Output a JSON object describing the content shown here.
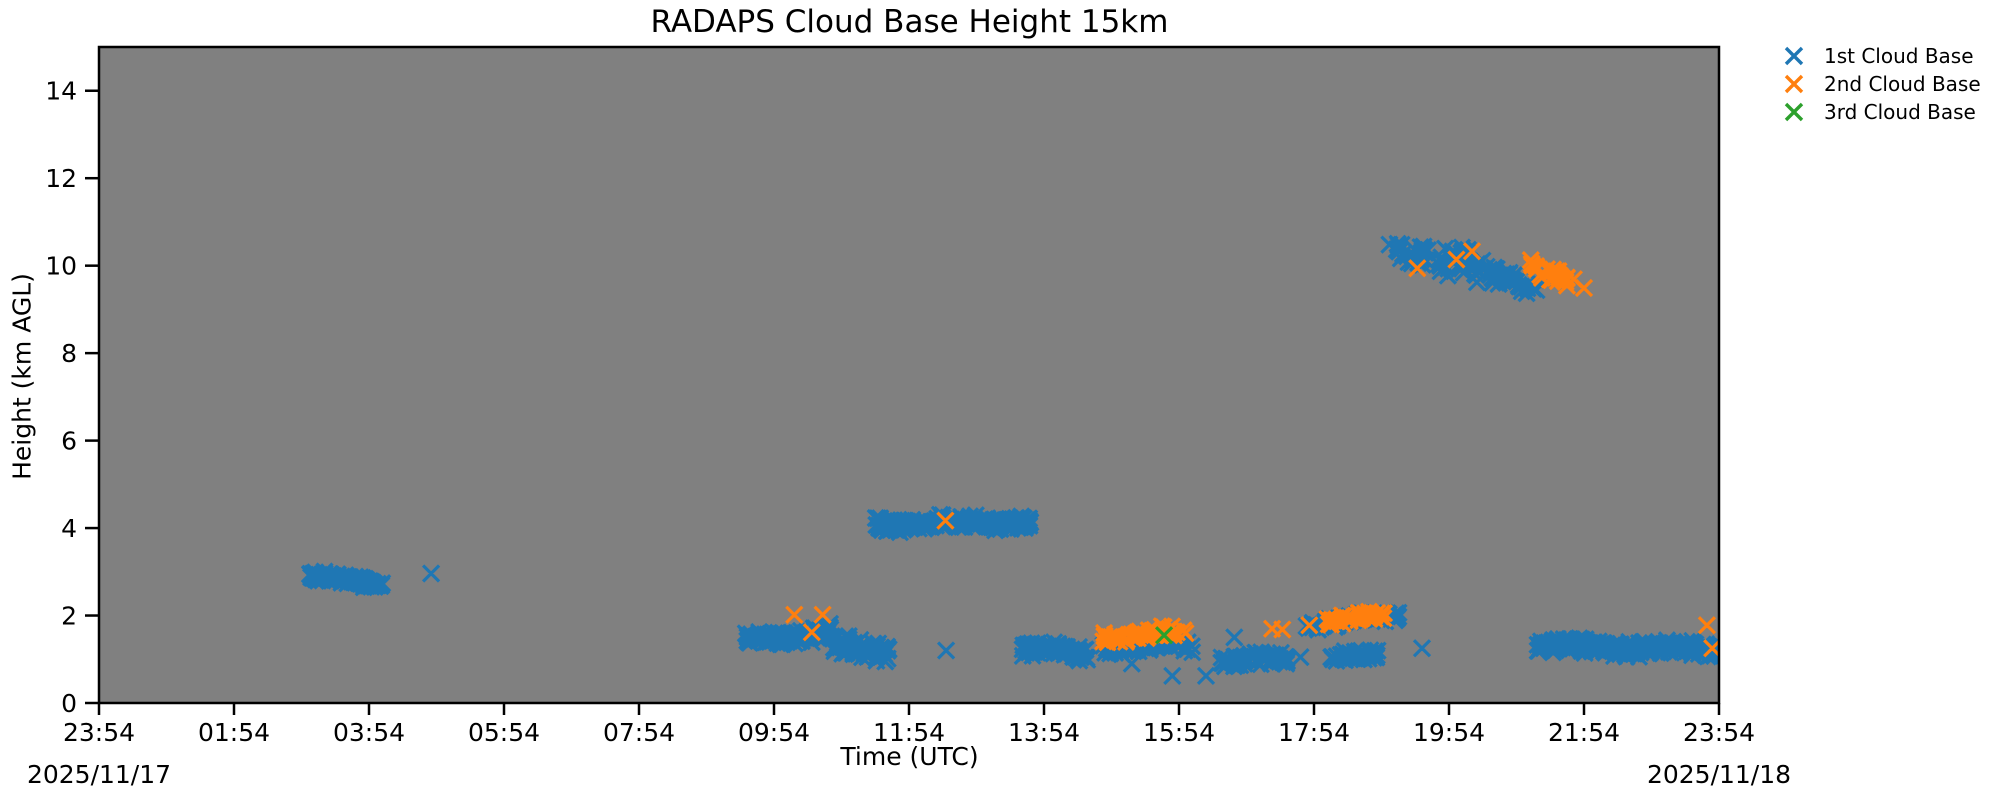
{
  "chart_data": {
    "type": "scatter",
    "title": "RADAPS Cloud Base Height 15km",
    "xlabel": "Time (UTC)",
    "ylabel": "Height (km AGL)",
    "start_date": "2025/11/17",
    "end_date": "2025/11/18",
    "x_tick_labels": [
      "23:54",
      "01:54",
      "03:54",
      "05:54",
      "07:54",
      "09:54",
      "11:54",
      "13:54",
      "15:54",
      "17:54",
      "19:54",
      "21:54",
      "23:54"
    ],
    "x_tick_hours": [
      0,
      2,
      4,
      6,
      8,
      10,
      12,
      14,
      16,
      18,
      20,
      22,
      24
    ],
    "y_tick_values": [
      0,
      2,
      4,
      6,
      8,
      10,
      12,
      14
    ],
    "xlim_hours": [
      0,
      24
    ],
    "ylim_km": [
      0,
      15
    ],
    "plot_background": "#808080",
    "figure_background": "#ffffff",
    "grid": false,
    "legend_position": "outside-upper-right",
    "marker": "x",
    "series": [
      {
        "name": "1st Cloud Base",
        "color": "#1f77b4",
        "clusters": [
          {
            "t": [
              3.12,
              4.2
            ],
            "h": [
              2.9,
              2.72
            ],
            "spread": 0.22,
            "n": 130
          },
          {
            "t": [
              9.58,
              10.85
            ],
            "h": [
              1.42,
              1.63
            ],
            "spread": 0.32,
            "n": 150
          },
          {
            "t": [
              10.87,
              11.7
            ],
            "h": [
              1.28,
              1.12
            ],
            "spread": 0.5,
            "n": 85
          },
          {
            "t": [
              11.5,
              13.8
            ],
            "h": [
              4.1,
              4.15
            ],
            "spread": 0.32,
            "n": 260
          },
          {
            "t": [
              13.68,
              14.65
            ],
            "h": [
              1.25,
              1.1
            ],
            "spread": 0.32,
            "n": 95
          },
          {
            "t": [
              14.87,
              16.2
            ],
            "h": [
              1.28,
              1.32
            ],
            "spread": 0.3,
            "n": 85
          },
          {
            "t": [
              16.62,
              17.6
            ],
            "h": [
              0.95,
              1.02
            ],
            "spread": 0.3,
            "n": 85
          },
          {
            "t": [
              17.88,
              19.3
            ],
            "h": [
              1.78,
              2.0
            ],
            "spread": 0.22,
            "n": 110
          },
          {
            "t": [
              18.2,
              18.95
            ],
            "h": [
              1.02,
              1.1
            ],
            "spread": 0.26,
            "n": 60
          },
          {
            "t": [
              19.1,
              19.72
            ],
            "h": [
              10.35,
              10.28
            ],
            "spread": 0.6,
            "n": 30
          },
          {
            "t": [
              19.85,
              20.5
            ],
            "h": [
              10.15,
              9.9
            ],
            "spread": 0.75,
            "n": 36
          },
          {
            "t": [
              20.35,
              21.35
            ],
            "h": [
              9.95,
              9.45
            ],
            "spread": 0.45,
            "n": 48
          },
          {
            "t": [
              21.28,
              24.0
            ],
            "h": [
              1.3,
              1.22
            ],
            "spread": 0.34,
            "n": 300
          }
        ],
        "points": [
          [
            4.92,
            2.96
          ],
          [
            12.55,
            1.2
          ],
          [
            15.3,
            0.9
          ],
          [
            15.9,
            0.62
          ],
          [
            16.4,
            0.62
          ],
          [
            16.82,
            1.5
          ],
          [
            17.8,
            1.05
          ],
          [
            19.25,
            1.97
          ],
          [
            19.6,
            1.25
          ]
        ]
      },
      {
        "name": "2nd Cloud Base",
        "color": "#ff7f0e",
        "clusters": [
          {
            "t": [
              14.87,
              16.1
            ],
            "h": [
              1.5,
              1.62
            ],
            "spread": 0.26,
            "n": 60
          },
          {
            "t": [
              18.18,
              19.1
            ],
            "h": [
              1.85,
              2.02
            ],
            "spread": 0.2,
            "n": 50
          },
          {
            "t": [
              21.2,
              21.75
            ],
            "h": [
              10.0,
              9.6
            ],
            "spread": 0.4,
            "n": 26
          }
        ],
        "points": [
          [
            10.3,
            2.02
          ],
          [
            10.72,
            2.02
          ],
          [
            10.56,
            1.62
          ],
          [
            12.54,
            4.17
          ],
          [
            17.38,
            1.7
          ],
          [
            17.53,
            1.68
          ],
          [
            17.93,
            1.78
          ],
          [
            19.53,
            9.94
          ],
          [
            20.11,
            10.14
          ],
          [
            20.34,
            10.33
          ],
          [
            21.85,
            9.69
          ],
          [
            22.0,
            9.49
          ],
          [
            23.82,
            1.78
          ],
          [
            23.9,
            1.25
          ]
        ]
      },
      {
        "name": "3rd Cloud Base",
        "color": "#2ca02c",
        "clusters": [],
        "points": [
          [
            15.78,
            1.55
          ]
        ]
      }
    ]
  }
}
